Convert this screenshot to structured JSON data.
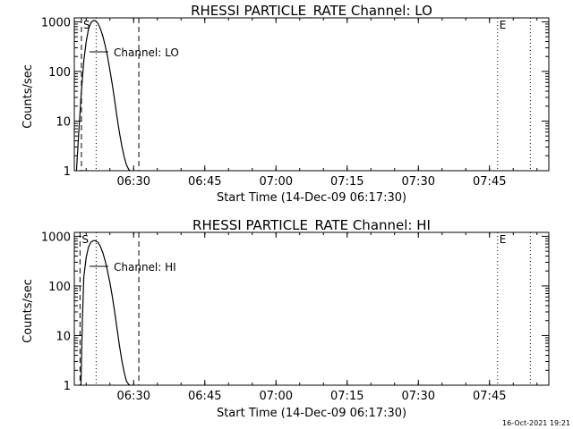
{
  "chart_data": [
    {
      "type": "line",
      "title": "RHESSI PARTICLE_RATE Channel: LO",
      "xlabel": "Start Time (14-Dec-09 06:17:30)",
      "ylabel": "Counts/sec",
      "x_ticks": [
        "06:30",
        "06:45",
        "07:00",
        "07:15",
        "07:30",
        "07:45"
      ],
      "x_tick_minutes": [
        12.5,
        27.5,
        42.5,
        57.5,
        72.5,
        87.5
      ],
      "y_ticks": [
        "1",
        "10",
        "100",
        "1000"
      ],
      "y_scale": "log",
      "xlim_minutes": [
        0,
        100
      ],
      "ylim": [
        1,
        1200
      ],
      "legend": "Channel: LO",
      "markers": [
        {
          "label": "S",
          "minute": 1.5,
          "style": "dashed"
        },
        {
          "label": "",
          "minute": 4.6,
          "style": "dotted"
        },
        {
          "label": "",
          "minute": 13.6,
          "style": "dashed"
        },
        {
          "label": "E",
          "minute": 89.2,
          "style": "dotted"
        },
        {
          "label": "",
          "minute": 96.1,
          "style": "dotted"
        }
      ],
      "series": [
        {
          "x_minutes": [
            0.45,
            0.95,
            1.45,
            2.0,
            2.5,
            3.0,
            3.5,
            4.0,
            4.5,
            5.0,
            5.5,
            6.0,
            6.5,
            7.0,
            7.5,
            8.0,
            8.5,
            9.0,
            9.5,
            10.0,
            10.5,
            11.0,
            11.5,
            11.77
          ],
          "values": [
            1,
            6,
            35,
            165,
            400,
            720,
            960,
            1060,
            1050,
            920,
            720,
            520,
            330,
            200,
            105,
            55,
            26,
            12,
            6,
            3.2,
            1.9,
            1.3,
            1.05,
            1
          ]
        }
      ]
    },
    {
      "type": "line",
      "title": "RHESSI PARTICLE_RATE Channel: HI",
      "xlabel": "Start Time (14-Dec-09 06:17:30)",
      "ylabel": "Counts/sec",
      "x_ticks": [
        "06:30",
        "06:45",
        "07:00",
        "07:15",
        "07:30",
        "07:45"
      ],
      "x_tick_minutes": [
        12.5,
        27.5,
        42.5,
        57.5,
        72.5,
        87.5
      ],
      "y_ticks": [
        "1",
        "10",
        "100",
        "1000"
      ],
      "y_scale": "log",
      "xlim_minutes": [
        0,
        100
      ],
      "ylim": [
        1,
        1200
      ],
      "legend": "Channel: HI",
      "markers": [
        {
          "label": "S",
          "minute": 1.2,
          "style": "dashed"
        },
        {
          "label": "",
          "minute": 4.6,
          "style": "dotted"
        },
        {
          "label": "",
          "minute": 13.6,
          "style": "dashed"
        },
        {
          "label": "E",
          "minute": 89.2,
          "style": "dotted"
        },
        {
          "label": "",
          "minute": 96.1,
          "style": "dotted"
        }
      ],
      "series": [
        {
          "x_minutes": [
            1.4,
            1.7,
            2.0,
            2.5,
            3.0,
            3.5,
            4.0,
            4.5,
            5.0,
            5.5,
            6.0,
            6.5,
            7.0,
            7.5,
            8.0,
            8.5,
            9.0,
            9.5,
            10.0,
            10.5,
            11.0,
            11.5,
            11.75
          ],
          "values": [
            1,
            20,
            150,
            380,
            610,
            760,
            820,
            810,
            750,
            620,
            470,
            320,
            200,
            115,
            62,
            30,
            14,
            6.5,
            3.2,
            1.8,
            1.2,
            1.03,
            1
          ]
        }
      ]
    }
  ],
  "footer": {
    "timestamp": "16-Oct-2021 19:21"
  }
}
